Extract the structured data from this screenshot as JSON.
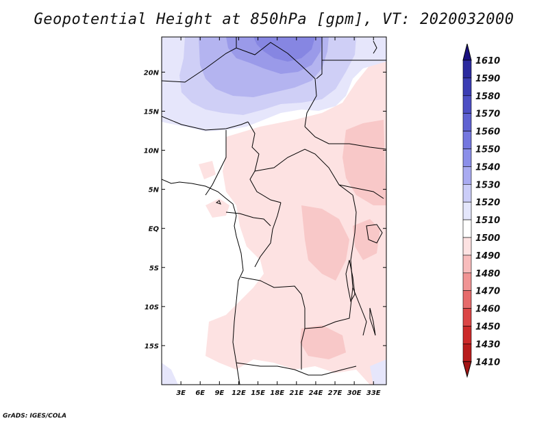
{
  "title": "Geopotential Height at 850hPa [gpm], VT: 2020032000",
  "footer": "GrADS: IGES/COLA",
  "map": {
    "lat_range": [
      -20,
      24.5
    ],
    "lon_range": [
      0,
      35
    ],
    "lat_ticks": [
      {
        "label": "20N",
        "lat": 20
      },
      {
        "label": "15N",
        "lat": 15
      },
      {
        "label": "10N",
        "lat": 10
      },
      {
        "label": "5N",
        "lat": 5
      },
      {
        "label": "EQ",
        "lat": 0
      },
      {
        "label": "5S",
        "lat": -5
      },
      {
        "label": "10S",
        "lat": -10
      },
      {
        "label": "15S",
        "lat": -15
      }
    ],
    "lon_ticks": [
      {
        "label": "3E",
        "lon": 3
      },
      {
        "label": "6E",
        "lon": 6
      },
      {
        "label": "9E",
        "lon": 9
      },
      {
        "label": "12E",
        "lon": 12
      },
      {
        "label": "15E",
        "lon": 15
      },
      {
        "label": "18E",
        "lon": 18
      },
      {
        "label": "21E",
        "lon": 21
      },
      {
        "label": "24E",
        "lon": 24
      },
      {
        "label": "27E",
        "lon": 27
      },
      {
        "label": "30E",
        "lon": 30
      },
      {
        "label": "33E",
        "lon": 33
      }
    ]
  },
  "colorbar": {
    "labels": [
      "1610",
      "1590",
      "1580",
      "1570",
      "1560",
      "1550",
      "1540",
      "1530",
      "1520",
      "1510",
      "1500",
      "1490",
      "1480",
      "1470",
      "1460",
      "1450",
      "1430",
      "1410"
    ],
    "colors": [
      "#1a1080",
      "#2b2a9e",
      "#3b3db3",
      "#4d4fc4",
      "#5f62d2",
      "#7477df",
      "#8b8fe9",
      "#a9abf1",
      "#cbcdf8",
      "#e4e6fb",
      "#ffffff",
      "#fde2e2",
      "#f8bcbc",
      "#f09494",
      "#e66b6b",
      "#db4646",
      "#cc2a2a",
      "#b81c1c",
      "#a31515"
    ]
  },
  "colors": {
    "land_white": "#ffffff",
    "height_1500_1510": "#fde2e2",
    "height_1490_1500": "#f8c8c8",
    "height_1520_1530": "#dcdcf8",
    "height_1530_1540": "#c4c4f4",
    "height_1540_1550": "#a9a9ee",
    "height_1550_1560": "#8e8ee6",
    "border": "#000000"
  }
}
